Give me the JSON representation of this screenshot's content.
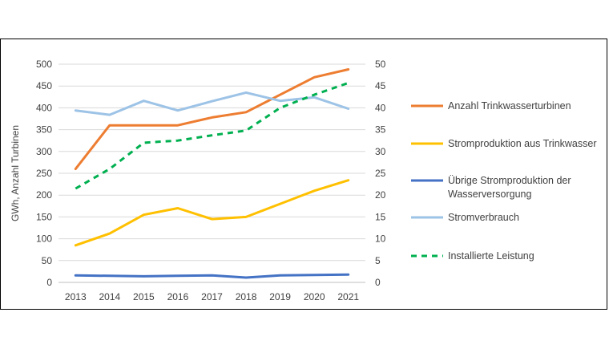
{
  "chart_data": {
    "type": "line",
    "title": "",
    "xlabel": "",
    "ylabel": "GWh, Anzahl Turbinen",
    "y2label": "",
    "ylim": [
      0,
      500
    ],
    "y2lim": [
      0,
      50
    ],
    "yticks": [
      "0",
      "50",
      "100",
      "150",
      "200",
      "250",
      "300",
      "350",
      "400",
      "450",
      "500"
    ],
    "y2ticks": [
      "0",
      "5",
      "10",
      "15",
      "20",
      "25",
      "30",
      "35",
      "40",
      "45",
      "50"
    ],
    "categories": [
      "2013",
      "2014",
      "2015",
      "2016",
      "2017",
      "2018",
      "2019",
      "2020",
      "2021"
    ],
    "series": [
      {
        "name": "Anzahl Trinkwasserturbinen",
        "axis": "left",
        "color": "#ED7D31",
        "dash": "solid",
        "values": [
          260,
          360,
          360,
          360,
          378,
          390,
          430,
          470,
          488
        ]
      },
      {
        "name": "Stromproduktion aus Trinkwasser",
        "axis": "left",
        "color": "#FFC000",
        "dash": "solid",
        "values": [
          85,
          112,
          155,
          170,
          145,
          150,
          180,
          210,
          234
        ]
      },
      {
        "name": "Übrige Stromproduktion der Wasserversorgung",
        "axis": "left",
        "color": "#4472C4",
        "dash": "solid",
        "values": [
          16,
          15,
          14,
          15,
          16,
          11,
          16,
          17,
          18
        ]
      },
      {
        "name": "Stromverbrauch",
        "axis": "left",
        "color": "#9DC3E6",
        "dash": "solid",
        "values": [
          394,
          384,
          416,
          394,
          415,
          435,
          416,
          424,
          398
        ]
      },
      {
        "name": "Installierte Leistung",
        "axis": "right",
        "color": "#00B050",
        "dash": "dashed",
        "values": [
          21.5,
          26,
          32,
          32.5,
          33.7,
          34.8,
          40,
          43,
          45.7
        ]
      }
    ],
    "legend_lines": [
      [
        "Anzahl Trinkwasserturbinen"
      ],
      [
        "Stromproduktion aus Trinkwasser"
      ],
      [
        "Übrige Stromproduktion der",
        "Wasserversorgung"
      ],
      [
        "Stromverbrauch"
      ],
      [
        "Installierte Leistung"
      ]
    ],
    "legend_position": "right",
    "grid": true
  }
}
